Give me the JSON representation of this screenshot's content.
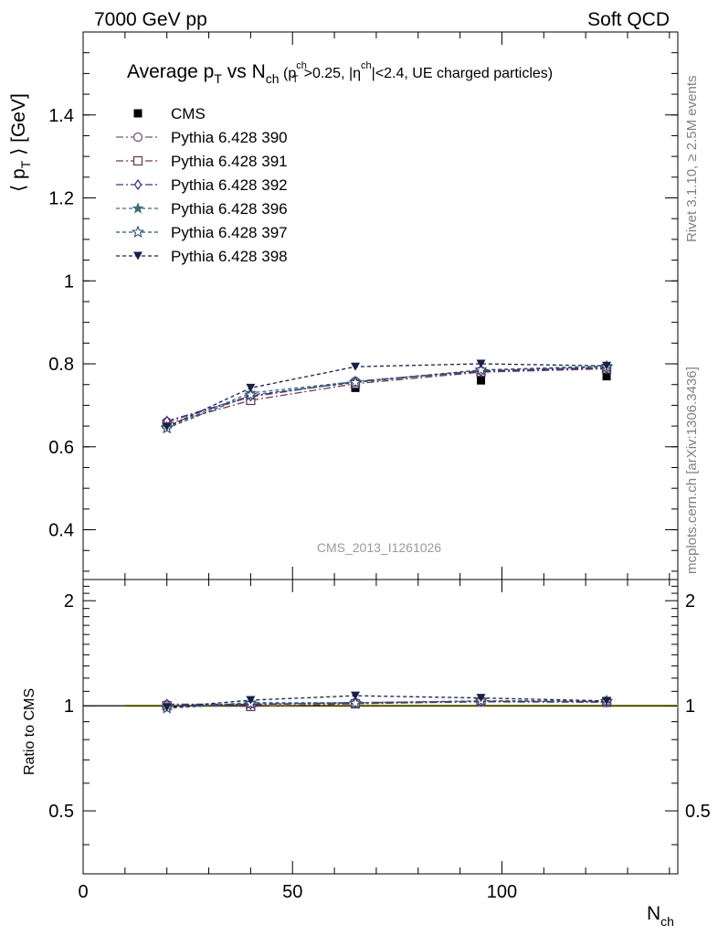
{
  "header": {
    "left": "7000 GeV pp",
    "right": "Soft QCD"
  },
  "side_text": {
    "rivet": "Rivet 3.1.10, ≥ 2.5M events",
    "mcplots": "mcplots.cern.ch [arXiv:1306.3436]"
  },
  "analysis_id": "CMS_2013_I1261026",
  "chart_data": [
    {
      "type": "line",
      "title": {
        "prefix": "Average p",
        "pt_sub": "T",
        "vs": " vs N",
        "n_sub": "ch",
        "cut_open": " (p",
        "cut_sup": "ch",
        "cut_sub": "T",
        "cut_mid": ">0.25, |η",
        "eta_sup": "ch",
        "cut_end": "|<2.4, UE charged particles)"
      },
      "ylabel": {
        "open": "⟨ p",
        "sub": "T",
        "close": " ⟩ [GeV]"
      },
      "xlim": [
        0,
        142
      ],
      "ylim": [
        0.28,
        1.6
      ],
      "yticks": [
        0.4,
        0.6,
        0.8,
        1,
        1.2,
        1.4
      ],
      "ytick_labels": [
        "0.4",
        "0.6",
        "0.8",
        "1",
        "1.2",
        "1.4"
      ],
      "x": [
        20,
        40,
        65,
        95,
        125
      ],
      "data": {
        "name": "CMS",
        "values": [
          0.655,
          0.715,
          0.742,
          0.76,
          0.77
        ],
        "color": "#000000"
      },
      "series": [
        {
          "name": "Pythia 6.428 390",
          "values": [
            0.66,
            0.72,
            0.758,
            0.783,
            0.792
          ],
          "color": "#7a4e85",
          "marker": "circle-open",
          "dash": "8,3,2,3"
        },
        {
          "name": "Pythia 6.428 391",
          "values": [
            0.655,
            0.712,
            0.752,
            0.78,
            0.788
          ],
          "color": "#6e3a55",
          "marker": "square-open",
          "dash": "8,3,2,3"
        },
        {
          "name": "Pythia 6.428 392",
          "values": [
            0.662,
            0.722,
            0.757,
            0.782,
            0.79
          ],
          "color": "#4b2f78",
          "marker": "diamond-open",
          "dash": "8,3,2,3"
        },
        {
          "name": "Pythia 6.428 396",
          "values": [
            0.648,
            0.73,
            0.757,
            0.785,
            0.795
          ],
          "color": "#3f6a80",
          "marker": "star-filled",
          "dash": "4,3"
        },
        {
          "name": "Pythia 6.428 397",
          "values": [
            0.645,
            0.725,
            0.755,
            0.785,
            0.792
          ],
          "color": "#2e4f6e",
          "marker": "star-open",
          "dash": "4,3"
        },
        {
          "name": "Pythia 6.428 398",
          "values": [
            0.648,
            0.742,
            0.793,
            0.8,
            0.795
          ],
          "color": "#1a1f45",
          "marker": "triangle-down-filled",
          "dash": "4,3"
        }
      ]
    },
    {
      "type": "line",
      "ylabel": "Ratio to CMS",
      "xlabel": {
        "main": "N",
        "sub": "ch"
      },
      "xlim": [
        0,
        142
      ],
      "ylim": [
        0.33,
        2.3
      ],
      "log_y": true,
      "yticks": [
        0.5,
        1,
        2
      ],
      "ytick_labels": [
        "0.5",
        "1",
        "2"
      ],
      "xticks": [
        0,
        50,
        100
      ],
      "xtick_labels": [
        "0",
        "50",
        "100"
      ],
      "band_color": "#d8f070"
    }
  ]
}
